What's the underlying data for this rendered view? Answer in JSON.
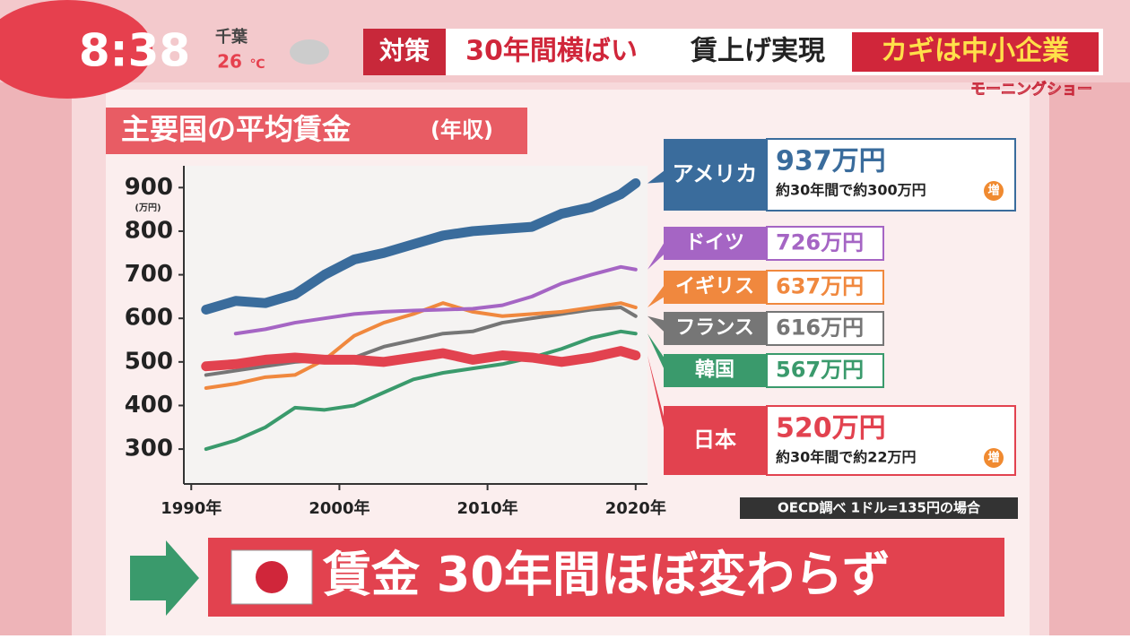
{
  "screen": {
    "clock": "8:38",
    "place": "千葉",
    "temp": "26",
    "temp_unit": "℃",
    "banner_tag": "対策",
    "banner_1": "30年間横ばい",
    "banner_2": "賃上げ実現",
    "banner_3": "カギは中小企業",
    "program": "モーニングショー",
    "footer": "賃金 30年間ほぼ変わらず"
  },
  "chart_data": {
    "type": "line",
    "title": "主要国の平均賃金",
    "title_sub": "(年収)",
    "y_unit": "(万円)",
    "source": "OECD調べ 1ドル=135円の場合",
    "x": [
      1991,
      1993,
      1995,
      1997,
      1999,
      2001,
      2003,
      2005,
      2007,
      2009,
      2011,
      2013,
      2015,
      2017,
      2019,
      2020
    ],
    "xlim": [
      1989.5,
      2020.8
    ],
    "xticks": [
      {
        "value": 1990,
        "label": "1990年"
      },
      {
        "value": 2000,
        "label": "2000年"
      },
      {
        "value": 2010,
        "label": "2010年"
      },
      {
        "value": 2020,
        "label": "2020年"
      }
    ],
    "ylim": [
      220,
      950
    ],
    "yticks": [
      300,
      400,
      500,
      600,
      700,
      800,
      900
    ],
    "series": [
      {
        "name": "アメリカ",
        "color": "#3a6c9c",
        "callout": "937万円",
        "note": "約30年間で約300万円",
        "badge": "増",
        "values": [
          620,
          640,
          635,
          655,
          700,
          735,
          750,
          770,
          790,
          800,
          805,
          810,
          840,
          855,
          885,
          910
        ]
      },
      {
        "name": "ドイツ",
        "color": "#a565c4",
        "callout": "726万円",
        "values": [
          null,
          565,
          575,
          590,
          600,
          610,
          615,
          618,
          620,
          622,
          630,
          650,
          680,
          700,
          718,
          712
        ]
      },
      {
        "name": "イギリス",
        "color": "#f0883e",
        "callout": "637万円",
        "values": [
          440,
          450,
          465,
          470,
          505,
          560,
          590,
          610,
          635,
          615,
          605,
          610,
          615,
          625,
          635,
          625
        ]
      },
      {
        "name": "フランス",
        "color": "#767676",
        "callout": "616万円",
        "values": [
          470,
          480,
          490,
          500,
          505,
          510,
          535,
          550,
          565,
          570,
          590,
          600,
          610,
          620,
          625,
          605
        ]
      },
      {
        "name": "韓国",
        "color": "#3a9a6c",
        "callout": "567万円",
        "values": [
          300,
          320,
          350,
          395,
          390,
          400,
          430,
          460,
          475,
          485,
          495,
          510,
          530,
          555,
          570,
          565
        ]
      },
      {
        "name": "日本",
        "color": "#e2424f",
        "callout": "520万円",
        "note": "約30年間で約22万円",
        "badge": "増",
        "values": [
          490,
          495,
          505,
          510,
          505,
          505,
          500,
          510,
          520,
          505,
          515,
          510,
          500,
          510,
          525,
          515
        ]
      }
    ]
  }
}
